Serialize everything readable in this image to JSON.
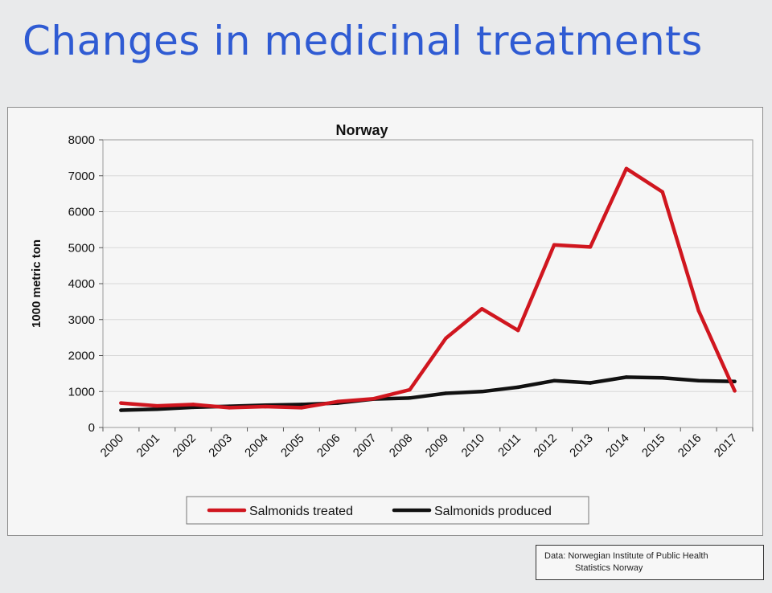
{
  "slide": {
    "title": "Changes in medicinal treatments"
  },
  "source": {
    "line1": "Data: Norwegian Institute of Public Health",
    "line2": "Statistics Norway"
  },
  "colors": {
    "title": "#2f5bd3",
    "treated": "#d0161f",
    "produced": "#111111"
  },
  "chart_data": {
    "type": "line",
    "title": "Norway",
    "xlabel": "",
    "ylabel": "1000 metric ton",
    "ylim": [
      0,
      8000
    ],
    "yticks": [
      0,
      1000,
      2000,
      3000,
      4000,
      5000,
      6000,
      7000,
      8000
    ],
    "x": [
      "2000",
      "2001",
      "2002",
      "2003",
      "2004",
      "2005",
      "2006",
      "2007",
      "2008",
      "2009",
      "2010",
      "2011",
      "2012",
      "2013",
      "2014",
      "2015",
      "2016",
      "2017"
    ],
    "series": [
      {
        "name": "Salmonids treated",
        "color": "#d0161f",
        "values": [
          680,
          600,
          640,
          550,
          580,
          550,
          720,
          800,
          1050,
          2480,
          3300,
          2700,
          5080,
          5020,
          7200,
          6550,
          3250,
          1020
        ]
      },
      {
        "name": "Salmonids produced",
        "color": "#111111",
        "values": [
          480,
          510,
          560,
          590,
          620,
          640,
          680,
          790,
          820,
          950,
          1000,
          1120,
          1300,
          1240,
          1400,
          1380,
          1300,
          1280
        ]
      }
    ],
    "legend_position": "bottom-center",
    "grid": true
  }
}
